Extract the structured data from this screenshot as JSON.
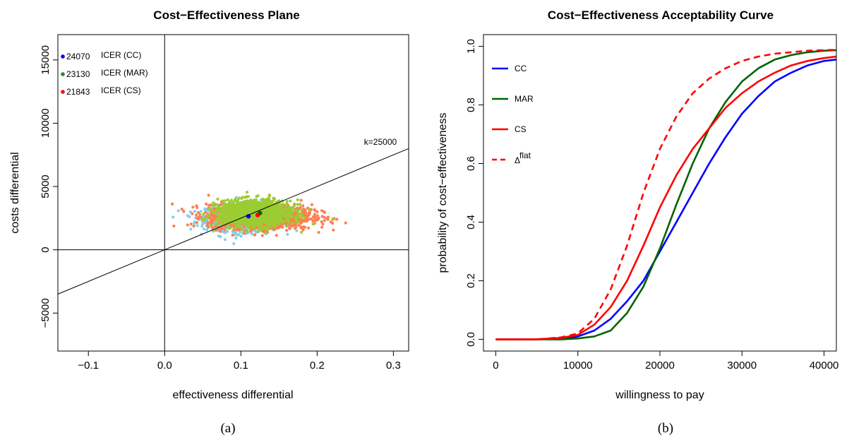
{
  "captions": [
    "(a)",
    "(b)"
  ],
  "colors": {
    "cc": "#0000ff",
    "mar": "#006400",
    "cs": "#ff0000",
    "cloud_cc": "#87ceeb",
    "cloud_cs": "#ff7f50",
    "cloud_mar": "#9acd32"
  },
  "chart_data": [
    {
      "type": "scatter",
      "title": "Cost−Effectiveness Plane",
      "xlabel": "effectiveness differential",
      "ylabel": "costs differential",
      "xlim": [
        -0.14,
        0.32
      ],
      "ylim": [
        -8000,
        17000
      ],
      "xticks": [
        -0.1,
        0.0,
        0.1,
        0.2,
        0.3
      ],
      "xtick_labels": [
        "−0.1",
        "0.0",
        "0.1",
        "0.2",
        "0.3"
      ],
      "yticks": [
        -5000,
        0,
        5000,
        10000,
        15000
      ],
      "ytick_labels": [
        "−5000",
        "0",
        "5000",
        "10000",
        "15000"
      ],
      "grid": false,
      "legend_position": "top-left",
      "legend": [
        {
          "value": "24070",
          "label": "ICER (CC)",
          "color": "#0000ff"
        },
        {
          "value": "23130",
          "label": "ICER (MAR)",
          "color": "#228b22"
        },
        {
          "value": "21843",
          "label": "ICER (CS)",
          "color": "#ff0000"
        }
      ],
      "wtp_line": {
        "label": "k=25000",
        "slope": 25000
      },
      "clouds": [
        {
          "name": "CC",
          "color": "#87ceeb",
          "center": [
            0.105,
            2500
          ],
          "sd": [
            0.025,
            500
          ]
        },
        {
          "name": "CS",
          "color": "#ff7f50",
          "center": [
            0.125,
            2600
          ],
          "sd": [
            0.034,
            480
          ]
        },
        {
          "name": "MAR",
          "color": "#9acd32",
          "center": [
            0.118,
            2900
          ],
          "sd": [
            0.024,
            500
          ]
        }
      ],
      "means": [
        {
          "name": "CC",
          "x": 0.11,
          "y": 2650,
          "color": "#0000ff"
        },
        {
          "name": "MAR",
          "x": 0.125,
          "y": 2900,
          "color": "#006400"
        },
        {
          "name": "CS",
          "x": 0.122,
          "y": 2750,
          "color": "#ff0000"
        }
      ]
    },
    {
      "type": "line",
      "title": "Cost−Effectiveness Acceptability Curve",
      "xlabel": "willingness to pay",
      "ylabel": "probability of cost−effectiveness",
      "xlim": [
        -1500,
        41500
      ],
      "ylim": [
        -0.04,
        1.04
      ],
      "xticks": [
        0,
        10000,
        20000,
        30000,
        40000
      ],
      "xtick_labels": [
        "0",
        "10000",
        "20000",
        "30000",
        "40000"
      ],
      "yticks": [
        0.0,
        0.2,
        0.4,
        0.6,
        0.8,
        1.0
      ],
      "ytick_labels": [
        "0.0",
        "0.2",
        "0.4",
        "0.6",
        "0.8",
        "1.0"
      ],
      "grid": false,
      "legend_position": "top-left",
      "x": [
        0,
        5000,
        8000,
        10000,
        12000,
        14000,
        16000,
        18000,
        20000,
        22000,
        24000,
        26000,
        28000,
        30000,
        32000,
        34000,
        36000,
        38000,
        40000,
        41500
      ],
      "series": [
        {
          "name": "CC",
          "color": "#0000ff",
          "dash": false,
          "values": [
            0.0,
            0.0,
            0.003,
            0.01,
            0.03,
            0.07,
            0.13,
            0.2,
            0.3,
            0.4,
            0.5,
            0.6,
            0.69,
            0.77,
            0.83,
            0.88,
            0.91,
            0.935,
            0.95,
            0.955
          ]
        },
        {
          "name": "MAR",
          "color": "#006400",
          "dash": false,
          "values": [
            0.0,
            0.0,
            0.0,
            0.003,
            0.01,
            0.03,
            0.09,
            0.18,
            0.31,
            0.46,
            0.6,
            0.72,
            0.81,
            0.88,
            0.925,
            0.955,
            0.97,
            0.98,
            0.985,
            0.987
          ]
        },
        {
          "name": "CS",
          "color": "#ff0000",
          "dash": false,
          "values": [
            0.0,
            0.0,
            0.005,
            0.015,
            0.05,
            0.11,
            0.2,
            0.32,
            0.45,
            0.56,
            0.65,
            0.72,
            0.79,
            0.84,
            0.88,
            0.91,
            0.935,
            0.95,
            0.96,
            0.965
          ]
        },
        {
          "name": "Δ",
          "name_superscript": "flat",
          "color": "#ff0000",
          "dash": true,
          "values": [
            0.0,
            0.0,
            0.007,
            0.02,
            0.07,
            0.17,
            0.32,
            0.5,
            0.65,
            0.76,
            0.84,
            0.89,
            0.925,
            0.95,
            0.965,
            0.975,
            0.98,
            0.985,
            0.987,
            0.988
          ]
        }
      ]
    }
  ]
}
